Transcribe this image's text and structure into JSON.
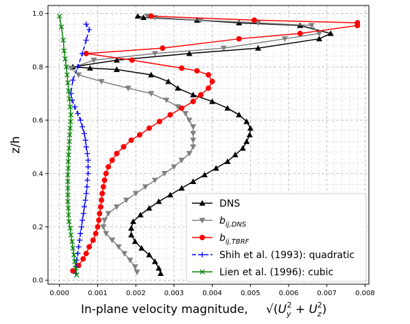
{
  "chart_data": {
    "type": "line",
    "title": "",
    "xlabel": "In-plane velocity magnitude,",
    "xlabel_math": [
      "√(",
      "U",
      "y",
      "2",
      " + ",
      "U",
      "z",
      "2",
      ")"
    ],
    "ylabel": "z/h",
    "xlim": [
      -0.0003,
      0.0081
    ],
    "ylim": [
      -0.015,
      1.03
    ],
    "xticks": [
      0.0,
      0.001,
      0.002,
      0.003,
      0.004,
      0.005,
      0.006,
      0.007,
      0.008
    ],
    "xtick_labels": [
      "0.000",
      "0.001",
      "0.002",
      "0.003",
      "0.004",
      "0.005",
      "0.006",
      "0.007",
      "0.008"
    ],
    "yticks": [
      0.0,
      0.2,
      0.4,
      0.6,
      0.8,
      1.0
    ],
    "ytick_labels": [
      "0.0",
      "0.2",
      "0.4",
      "0.6",
      "0.8",
      "1.0"
    ],
    "grid": true,
    "legend_position": "lower-right",
    "series": [
      {
        "name": "DNS",
        "color": "#000000",
        "marker": "triangle-up",
        "linestyle": "solid",
        "x": [
          0.00265,
          0.0026,
          0.0025,
          0.00235,
          0.00215,
          0.00198,
          0.00188,
          0.00188,
          0.00193,
          0.00212,
          0.00235,
          0.0026,
          0.0029,
          0.0032,
          0.0035,
          0.0038,
          0.0041,
          0.0044,
          0.0046,
          0.0048,
          0.0049,
          0.00498,
          0.005,
          0.0049,
          0.0047,
          0.0044,
          0.004,
          0.0035,
          0.0031,
          0.00285,
          0.0024,
          0.0015,
          0.0008,
          0.00035,
          0.0015,
          0.0034,
          0.0052,
          0.0068,
          0.0071,
          0.0063,
          0.0047,
          0.0036,
          0.0022,
          0.00205
        ],
        "y": [
          0.025,
          0.045,
          0.07,
          0.095,
          0.12,
          0.145,
          0.17,
          0.195,
          0.22,
          0.245,
          0.27,
          0.295,
          0.32,
          0.345,
          0.37,
          0.395,
          0.42,
          0.445,
          0.47,
          0.495,
          0.52,
          0.545,
          0.57,
          0.595,
          0.62,
          0.645,
          0.67,
          0.695,
          0.72,
          0.745,
          0.77,
          0.79,
          0.795,
          0.8,
          0.825,
          0.85,
          0.87,
          0.905,
          0.925,
          0.955,
          0.965,
          0.975,
          0.985,
          0.99
        ]
      },
      {
        "name": "b_{ij,DNS}",
        "color": "#808080",
        "marker": "triangle-down",
        "linestyle": "solid",
        "x": [
          0.00203,
          0.00198,
          0.00185,
          0.0017,
          0.00155,
          0.00138,
          0.00122,
          0.00115,
          0.00118,
          0.00128,
          0.0015,
          0.00175,
          0.002,
          0.00225,
          0.0025,
          0.00275,
          0.003,
          0.0032,
          0.0034,
          0.0035,
          0.0035,
          0.0035,
          0.0035,
          0.0034,
          0.0033,
          0.0031,
          0.0028,
          0.0024,
          0.0018,
          0.0011,
          0.0005,
          0.0003,
          0.0009,
          0.0025,
          0.0043,
          0.0059,
          0.0068,
          0.0066,
          0.0052,
          0.0037,
          0.0025,
          0.0023
        ],
        "y": [
          0.03,
          0.05,
          0.075,
          0.1,
          0.125,
          0.15,
          0.175,
          0.2,
          0.225,
          0.25,
          0.275,
          0.3,
          0.325,
          0.35,
          0.375,
          0.4,
          0.425,
          0.45,
          0.475,
          0.5,
          0.525,
          0.55,
          0.575,
          0.6,
          0.625,
          0.65,
          0.675,
          0.7,
          0.72,
          0.745,
          0.77,
          0.795,
          0.825,
          0.85,
          0.87,
          0.905,
          0.925,
          0.955,
          0.965,
          0.975,
          0.985,
          0.99
        ]
      },
      {
        "name": "b_{ij,TBRF}",
        "color": "#ff0000",
        "marker": "circle",
        "linestyle": "solid",
        "x": [
          0.00035,
          0.0005,
          0.00062,
          0.0007,
          0.00078,
          0.00088,
          0.00095,
          0.001,
          0.00103,
          0.00105,
          0.00108,
          0.0011,
          0.00112,
          0.00115,
          0.00118,
          0.00122,
          0.00128,
          0.00138,
          0.0015,
          0.00168,
          0.00188,
          0.0021,
          0.00235,
          0.00262,
          0.0029,
          0.0032,
          0.0035,
          0.0037,
          0.0039,
          0.004,
          0.0039,
          0.0036,
          0.0032,
          0.0019,
          0.0007,
          0.0027,
          0.0047,
          0.0063,
          0.0078,
          0.0078,
          0.0051,
          0.0024
        ],
        "y": [
          0.035,
          0.055,
          0.08,
          0.1,
          0.125,
          0.15,
          0.175,
          0.2,
          0.225,
          0.25,
          0.275,
          0.3,
          0.325,
          0.35,
          0.375,
          0.4,
          0.425,
          0.45,
          0.475,
          0.5,
          0.525,
          0.545,
          0.57,
          0.595,
          0.62,
          0.645,
          0.67,
          0.695,
          0.72,
          0.745,
          0.77,
          0.785,
          0.795,
          0.825,
          0.85,
          0.87,
          0.905,
          0.925,
          0.955,
          0.965,
          0.975,
          0.99
        ]
      },
      {
        "name": "Shih et al. (1993): quadratic",
        "color": "#0000ff",
        "marker": "plus",
        "linestyle": "dashed",
        "x": [
          0.00043,
          0.00043,
          0.00045,
          0.00048,
          0.0005,
          0.00053,
          0.00055,
          0.00058,
          0.0006,
          0.00063,
          0.00065,
          0.00068,
          0.0007,
          0.00072,
          0.00073,
          0.00075,
          0.00075,
          0.00075,
          0.00073,
          0.0007,
          0.00068,
          0.00065,
          0.0006,
          0.00055,
          0.00048,
          0.0004,
          0.00033,
          0.0003,
          0.00035,
          0.00048,
          0.0006,
          0.0007,
          0.00078,
          0.0007
        ],
        "y": [
          0.025,
          0.05,
          0.075,
          0.1,
          0.125,
          0.15,
          0.175,
          0.2,
          0.225,
          0.25,
          0.275,
          0.3,
          0.325,
          0.35,
          0.375,
          0.4,
          0.425,
          0.45,
          0.475,
          0.5,
          0.525,
          0.55,
          0.575,
          0.6,
          0.625,
          0.65,
          0.675,
          0.7,
          0.75,
          0.8,
          0.85,
          0.9,
          0.94,
          0.96
        ]
      },
      {
        "name": "Lien et al. (1996): cubic",
        "color": "#008000",
        "marker": "x",
        "linestyle": "solid",
        "x": [
          0.00045,
          0.00043,
          0.0004,
          0.00038,
          0.00035,
          0.00033,
          0.0003,
          0.00028,
          0.00025,
          0.00024,
          0.00023,
          0.00022,
          0.00022,
          0.00022,
          0.00022,
          0.00022,
          0.00023,
          0.00023,
          0.00024,
          0.00025,
          0.00026,
          0.00027,
          0.00028,
          0.00029,
          0.0003,
          0.00028,
          0.00026,
          0.00024,
          0.00022,
          0.0002,
          0.00018,
          0.00015,
          0.00012,
          0.0001,
          5e-05,
          0.0
        ],
        "y": [
          0.02,
          0.045,
          0.07,
          0.095,
          0.12,
          0.145,
          0.17,
          0.195,
          0.22,
          0.245,
          0.27,
          0.295,
          0.32,
          0.345,
          0.37,
          0.395,
          0.42,
          0.445,
          0.47,
          0.495,
          0.52,
          0.545,
          0.57,
          0.595,
          0.62,
          0.65,
          0.68,
          0.71,
          0.74,
          0.77,
          0.8,
          0.83,
          0.86,
          0.9,
          0.95,
          0.99
        ]
      }
    ]
  }
}
